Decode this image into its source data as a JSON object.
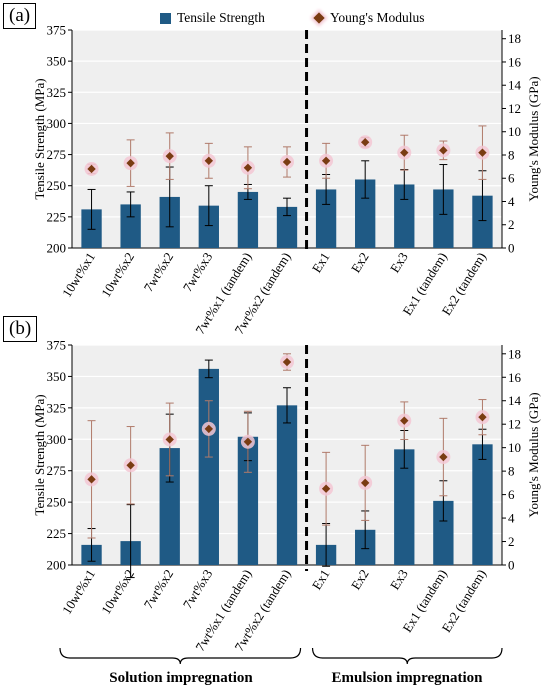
{
  "colors": {
    "bar": "#1f5a85",
    "marker": "#7a3c12",
    "marker_glow": "#f3c7d3",
    "plot_bg": "#efefef",
    "grid": "#ffffff",
    "divider": "#000000"
  },
  "legend": {
    "bar_label": "Tensile Strength",
    "marker_label": "Young's Modulus"
  },
  "group_labels": {
    "left": "Solution impregnation",
    "right": "Emulsion impregnation"
  },
  "chart_data": [
    {
      "type": "bar",
      "panel": "(a)",
      "categories": [
        "10wt%x1",
        "10wt%x2",
        "7wt%x2",
        "7wt%x3",
        "7wt%x1 (tandem)",
        "7wt%x2 (tandem)",
        "Ex1",
        "Ex2",
        "Ex3",
        "Ex1 (tandem)",
        "Ex2 (tandem)"
      ],
      "ylabel": "Tensile Strength (MPa)",
      "y2label": "Young's Modulus (GPa)",
      "ylim": [
        200,
        375
      ],
      "y2lim": [
        0,
        18.75
      ],
      "yticks": [
        200,
        225,
        250,
        275,
        300,
        325,
        350,
        375
      ],
      "y2ticks": [
        0,
        2,
        4,
        6,
        8,
        10,
        12,
        14,
        16,
        18
      ],
      "grid": true,
      "divider_after_index": 5,
      "series": [
        {
          "name": "Tensile Strength",
          "axis": "left",
          "values": [
            231,
            235,
            241,
            234,
            245,
            233,
            247,
            255,
            251,
            247,
            242
          ],
          "errors": [
            16,
            10,
            24,
            16,
            6,
            7,
            12,
            15,
            12,
            20,
            20
          ]
        },
        {
          "name": "Young's Modulus",
          "axis": "right",
          "values": [
            6.8,
            7.3,
            7.9,
            7.5,
            6.9,
            7.4,
            7.5,
            9.1,
            8.2,
            8.4,
            8.2
          ],
          "errors": [
            0.4,
            2.0,
            2.0,
            1.5,
            1.8,
            1.3,
            1.5,
            0.4,
            1.5,
            0.8,
            2.3
          ]
        }
      ]
    },
    {
      "type": "bar",
      "panel": "(b)",
      "categories": [
        "10wt%x1",
        "10wt%x2",
        "7wt%x2",
        "7wt%x3",
        "7wt%x1 (tandem)",
        "7wt%x2 (tandem)",
        "Ex1",
        "Ex2",
        "Ex3",
        "Ex1 (tandem)",
        "Ex2 (tandem)"
      ],
      "ylabel": "Tensile Strength (MPa)",
      "y2label": "Young's Modulus (GPa)",
      "ylim": [
        200,
        375
      ],
      "y2lim": [
        0,
        18.75
      ],
      "yticks": [
        200,
        225,
        250,
        275,
        300,
        325,
        350,
        375
      ],
      "y2ticks": [
        0,
        2,
        4,
        6,
        8,
        10,
        12,
        14,
        16,
        18
      ],
      "grid": true,
      "divider_after_index": 5,
      "series": [
        {
          "name": "Tensile Strength",
          "axis": "left",
          "values": [
            216,
            219,
            293,
            356,
            302,
            327,
            216,
            228,
            292,
            251,
            296
          ],
          "errors": [
            13,
            29,
            27,
            7,
            19,
            14,
            17,
            15,
            15,
            16,
            12
          ]
        },
        {
          "name": "Young's Modulus",
          "axis": "right",
          "values": [
            7.3,
            8.5,
            10.7,
            11.6,
            10.5,
            17.3,
            6.5,
            7.0,
            12.3,
            9.2,
            12.6
          ],
          "errors": [
            5.0,
            3.3,
            3.1,
            2.4,
            2.6,
            0.7,
            3.1,
            3.2,
            1.6,
            3.3,
            1.5
          ]
        }
      ]
    }
  ]
}
